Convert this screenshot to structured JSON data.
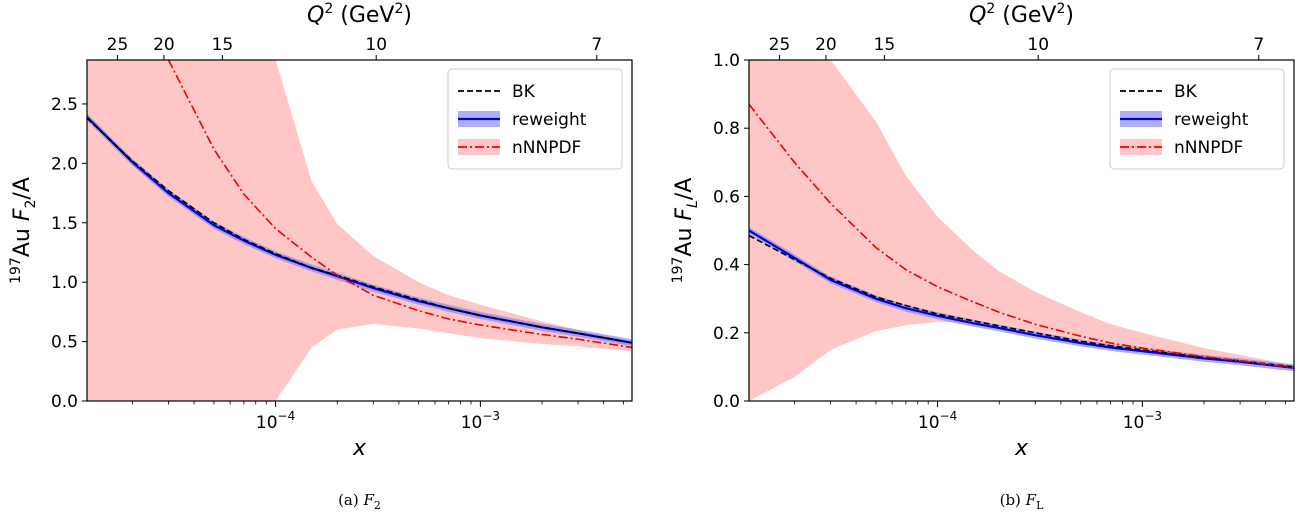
{
  "chart_data": [
    {
      "type": "line",
      "caption": "(a) F",
      "caption_sub": "2",
      "xlabel": "x",
      "ylabel_iso": "197",
      "ylabel_main": "Au  F",
      "ylabel_sub": "2",
      "ylabel_tail": "/A",
      "top_label": "Q",
      "top_unit": " (GeV",
      "x_scale": "log",
      "xlim": [
        1.2e-05,
        0.0055
      ],
      "ylim": [
        0,
        2.87
      ],
      "x_ticks": [
        {
          "v": 0.0001,
          "base": "10",
          "exp": "−4"
        },
        {
          "v": 0.001,
          "base": "10",
          "exp": "−3"
        }
      ],
      "y_ticks": [
        "0.0",
        "0.5",
        "1.0",
        "1.5",
        "2.0",
        "2.5"
      ],
      "top_ticks": [
        {
          "label": "25",
          "x": 1.69e-05
        },
        {
          "label": "20",
          "x": 2.85e-05
        },
        {
          "label": "15",
          "x": 5.5e-05
        },
        {
          "label": "10",
          "x": 0.00031
        },
        {
          "label": "7",
          "x": 0.0037
        }
      ],
      "legend": {
        "position": "top-right",
        "entries": [
          "BK",
          "reweight",
          "nNNPDF"
        ]
      },
      "x": [
        1.2e-05,
        2e-05,
        3e-05,
        5e-05,
        7e-05,
        0.0001,
        0.00015,
        0.0002,
        0.0003,
        0.0005,
        0.0007,
        0.001,
        0.002,
        0.003,
        0.0055
      ],
      "series": [
        {
          "name": "BK",
          "values": [
            2.38,
            2.02,
            1.77,
            1.5,
            1.36,
            1.24,
            1.12,
            1.06,
            0.96,
            0.85,
            0.78,
            0.72,
            0.62,
            0.57,
            0.49
          ]
        },
        {
          "name": "reweight",
          "values": [
            2.39,
            2.01,
            1.75,
            1.48,
            1.35,
            1.23,
            1.12,
            1.05,
            0.95,
            0.84,
            0.78,
            0.72,
            0.62,
            0.57,
            0.49
          ],
          "band_halfwidth": 0.03
        },
        {
          "name": "nNNPDF",
          "values": [
            null,
            null,
            2.87,
            2.12,
            1.74,
            1.45,
            1.21,
            1.06,
            0.89,
            0.76,
            0.69,
            0.64,
            0.56,
            0.52,
            0.45
          ],
          "band_upper": [
            2.87,
            2.87,
            2.87,
            2.87,
            2.87,
            2.87,
            1.85,
            1.49,
            1.22,
            1.0,
            0.89,
            0.81,
            0.67,
            0.6,
            0.5
          ],
          "band_lower": [
            0,
            0,
            0,
            0,
            0,
            0,
            0.45,
            0.6,
            0.65,
            0.61,
            0.57,
            0.53,
            0.48,
            0.46,
            0.42
          ]
        }
      ]
    },
    {
      "type": "line",
      "caption": "(b) F",
      "caption_sub": "L",
      "xlabel": "x",
      "ylabel_iso": "197",
      "ylabel_main": "Au  F",
      "ylabel_sub": "L",
      "ylabel_tail": "/A",
      "top_label": "Q",
      "top_unit": " (GeV",
      "x_scale": "log",
      "xlim": [
        1.2e-05,
        0.0055
      ],
      "ylim": [
        0,
        1.0
      ],
      "x_ticks": [
        {
          "v": 0.0001,
          "base": "10",
          "exp": "−4"
        },
        {
          "v": 0.001,
          "base": "10",
          "exp": "−3"
        }
      ],
      "y_ticks": [
        "0.0",
        "0.2",
        "0.4",
        "0.6",
        "0.8",
        "1.0"
      ],
      "top_ticks": [
        {
          "label": "25",
          "x": 1.69e-05
        },
        {
          "label": "20",
          "x": 2.85e-05
        },
        {
          "label": "15",
          "x": 5.5e-05
        },
        {
          "label": "10",
          "x": 0.00031
        },
        {
          "label": "7",
          "x": 0.0037
        }
      ],
      "legend": {
        "position": "top-right",
        "entries": [
          "BK",
          "reweight",
          "nNNPDF"
        ]
      },
      "x": [
        1.2e-05,
        2e-05,
        3e-05,
        5e-05,
        7e-05,
        0.0001,
        0.00015,
        0.0002,
        0.0003,
        0.0005,
        0.0007,
        0.001,
        0.002,
        0.003,
        0.0055
      ],
      "series": [
        {
          "name": "BK",
          "values": [
            0.485,
            0.415,
            0.36,
            0.305,
            0.28,
            0.255,
            0.235,
            0.22,
            0.2,
            0.175,
            0.162,
            0.15,
            0.128,
            0.118,
            0.1
          ]
        },
        {
          "name": "reweight",
          "values": [
            0.5,
            0.42,
            0.355,
            0.3,
            0.272,
            0.25,
            0.228,
            0.214,
            0.193,
            0.17,
            0.157,
            0.146,
            0.125,
            0.115,
            0.097
          ],
          "band_halfwidth": 0.01
        },
        {
          "name": "nNNPDF",
          "values": [
            0.87,
            0.7,
            0.58,
            0.45,
            0.385,
            0.335,
            0.29,
            0.26,
            0.225,
            0.19,
            0.17,
            0.155,
            0.13,
            0.118,
            0.097
          ],
          "band_upper": [
            1.0,
            1.0,
            1.0,
            0.82,
            0.66,
            0.54,
            0.44,
            0.38,
            0.32,
            0.26,
            0.225,
            0.2,
            0.155,
            0.135,
            0.105
          ],
          "band_lower": [
            0,
            0.07,
            0.15,
            0.205,
            0.222,
            0.232,
            0.23,
            0.222,
            0.2,
            0.175,
            0.16,
            0.148,
            0.125,
            0.115,
            0.094
          ]
        }
      ]
    }
  ]
}
